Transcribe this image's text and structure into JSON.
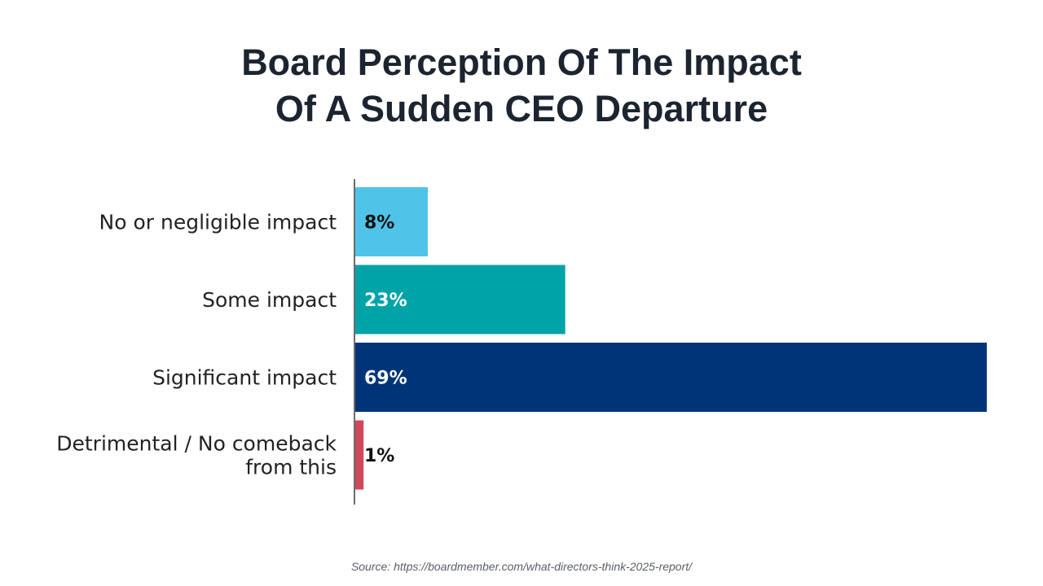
{
  "chart_data": {
    "type": "bar",
    "orientation": "horizontal",
    "title_lines": [
      "Board Perception Of The Impact",
      "Of A Sudden CEO Departure"
    ],
    "categories": [
      [
        "No or negligible impact"
      ],
      [
        "Some impact"
      ],
      [
        "Significant impact"
      ],
      [
        "Detrimental / No comeback",
        "from this"
      ]
    ],
    "values": [
      8,
      23,
      69,
      1
    ],
    "value_labels": [
      "8%",
      "23%",
      "69%",
      "1%"
    ],
    "colors": [
      "#4fc3e8",
      "#00a3a8",
      "#003478",
      "#d0485c"
    ],
    "label_colors": [
      "#111111",
      "#ffffff",
      "#ffffff",
      "#111111"
    ],
    "xlim": [
      0,
      69
    ],
    "grid": false,
    "legend": "none"
  },
  "source": "Source: https://boardmember.com/what-directors-think-2025-report/"
}
